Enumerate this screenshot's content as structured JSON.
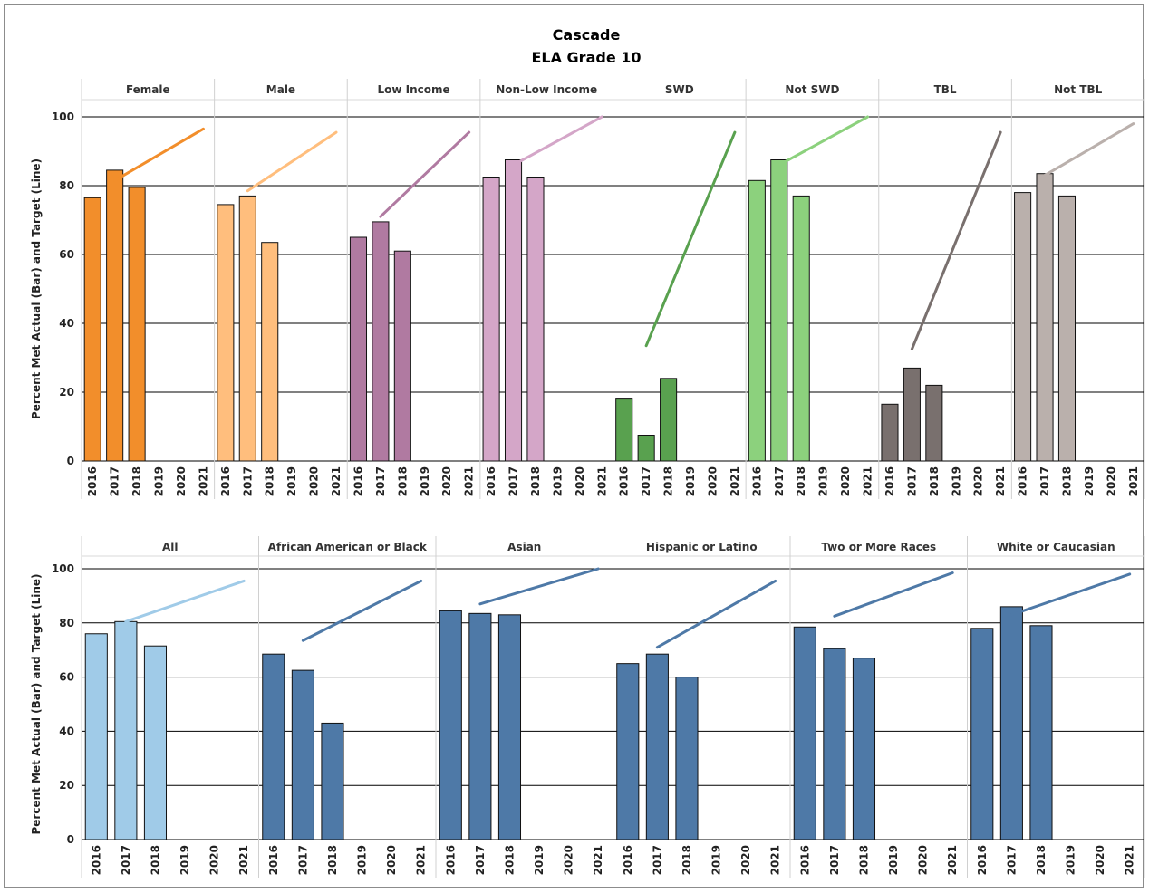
{
  "chart_data": {
    "type": "bar",
    "title": "Cascade",
    "subtitle": "ELA Grade 10",
    "ylabel": "Percent Met Actual (Bar) and Target (Line)",
    "ylim": [
      0,
      100
    ],
    "yticks": [
      0,
      20,
      40,
      60,
      80,
      100
    ],
    "x": [
      "2016",
      "2017",
      "2018",
      "2019",
      "2020",
      "2021"
    ],
    "rows": [
      {
        "panels": [
          {
            "label": "Female",
            "color": "#f28e2b",
            "bars": [
              76.5,
              84.5,
              79.5
            ],
            "target": {
              "x": [
                "2017",
                "2021"
              ],
              "y": [
                81.5,
                96.5
              ]
            }
          },
          {
            "label": "Male",
            "color": "#ffbe7d",
            "bars": [
              74.5,
              77,
              63.5
            ],
            "target": {
              "x": [
                "2017",
                "2021"
              ],
              "y": [
                78.5,
                95.5
              ]
            }
          },
          {
            "label": "Low Income",
            "color": "#b07aa1",
            "bars": [
              65,
              69.5,
              61
            ],
            "target": {
              "x": [
                "2017",
                "2021"
              ],
              "y": [
                71,
                95.5
              ]
            }
          },
          {
            "label": "Non-Low Income",
            "color": "#d4a6c8",
            "bars": [
              82.5,
              87.5,
              82.5
            ],
            "target": {
              "x": [
                "2017",
                "2021"
              ],
              "y": [
                86,
                100
              ]
            }
          },
          {
            "label": "SWD",
            "color": "#59a14f",
            "bars": [
              18,
              7.5,
              24
            ],
            "target": {
              "x": [
                "2017",
                "2021"
              ],
              "y": [
                33.5,
                95.5
              ]
            }
          },
          {
            "label": "Not SWD",
            "color": "#8cd17d",
            "bars": [
              81.5,
              87.5,
              77
            ],
            "target": {
              "x": [
                "2017",
                "2021"
              ],
              "y": [
                86,
                100
              ]
            }
          },
          {
            "label": "TBL",
            "color": "#79706e",
            "bars": [
              16.5,
              27,
              22
            ],
            "target": {
              "x": [
                "2017",
                "2021"
              ],
              "y": [
                32.5,
                95.5
              ]
            }
          },
          {
            "label": "Not TBL",
            "color": "#bab0ac",
            "bars": [
              78,
              83.5,
              77
            ],
            "target": {
              "x": [
                "2017",
                "2021"
              ],
              "y": [
                83,
                98
              ]
            }
          }
        ]
      },
      {
        "panels": [
          {
            "label": "All",
            "color": "#a0cbe8",
            "bars": [
              76,
              80.5,
              71.5
            ],
            "target": {
              "x": [
                "2017",
                "2021"
              ],
              "y": [
                80.5,
                95.5
              ]
            }
          },
          {
            "label": "African American or Black",
            "color": "#4e79a7",
            "bars": [
              68.5,
              62.5,
              43
            ],
            "target": {
              "x": [
                "2017",
                "2021"
              ],
              "y": [
                73.5,
                95.5
              ]
            }
          },
          {
            "label": "Asian",
            "color": "#4e79a7",
            "bars": [
              84.5,
              83.5,
              83
            ],
            "target": {
              "x": [
                "2017",
                "2021"
              ],
              "y": [
                87,
                100
              ]
            }
          },
          {
            "label": "Hispanic or Latino",
            "color": "#4e79a7",
            "bars": [
              65,
              68.5,
              60
            ],
            "target": {
              "x": [
                "2017",
                "2021"
              ],
              "y": [
                71,
                95.5
              ]
            }
          },
          {
            "label": "Two or More Races",
            "color": "#4e79a7",
            "bars": [
              78.5,
              70.5,
              67
            ],
            "target": {
              "x": [
                "2017",
                "2021"
              ],
              "y": [
                82.5,
                98.5
              ]
            }
          },
          {
            "label": "White or Caucasian",
            "color": "#4e79a7",
            "bars": [
              78,
              86,
              79
            ],
            "target": {
              "x": [
                "2017",
                "2021"
              ],
              "y": [
                83,
                98
              ]
            }
          }
        ]
      }
    ]
  }
}
